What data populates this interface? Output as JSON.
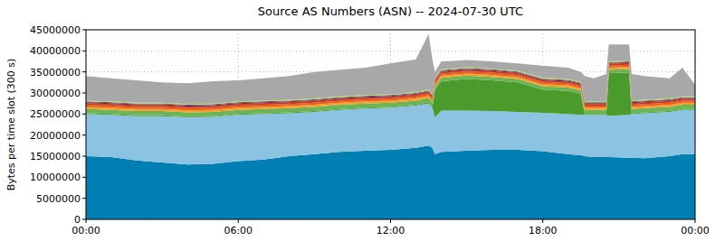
{
  "chart_data": {
    "type": "area",
    "stacked": true,
    "grid": true,
    "title": "Source AS Numbers (ASN) -- 2024-07-30 UTC",
    "y_label": "Bytes per time slot (300 s)",
    "x": [
      0,
      1,
      2,
      3,
      4,
      5,
      6,
      7,
      8,
      9,
      10,
      11,
      12,
      13,
      13.5,
      13.65,
      13.75,
      14,
      15,
      16,
      17,
      18,
      19,
      19.5,
      19.65,
      20,
      20.5,
      20.6,
      21.4,
      21.5,
      22,
      23,
      23.5,
      24
    ],
    "xlim": [
      0,
      24
    ],
    "xticks": [
      {
        "value": 0,
        "label": "00:00"
      },
      {
        "value": 6,
        "label": "06:00"
      },
      {
        "value": 12,
        "label": "12:00"
      },
      {
        "value": 18,
        "label": "18:00"
      },
      {
        "value": 24,
        "label": "00:00"
      }
    ],
    "ylim": [
      0,
      45000000
    ],
    "yticks": [
      0,
      5000000,
      10000000,
      15000000,
      20000000,
      25000000,
      30000000,
      35000000,
      40000000,
      45000000
    ],
    "series": [
      {
        "color": "#0080b2",
        "values": [
          15000000,
          14800000,
          14000000,
          13500000,
          13000000,
          13200000,
          13800000,
          14200000,
          15000000,
          15500000,
          16000000,
          16300000,
          16500000,
          17000000,
          17500000,
          17000000,
          15500000,
          16000000,
          16300000,
          16500000,
          16500000,
          16200000,
          15500000,
          15200000,
          15000000,
          14800000,
          14800000,
          14800000,
          14600000,
          14600000,
          14500000,
          15000000,
          15500000,
          15500000
        ]
      },
      {
        "color": "#8cc3e2",
        "values": [
          10000000,
          10000000,
          10500000,
          11000000,
          11200000,
          11100000,
          11000000,
          10800000,
          10200000,
          10000000,
          10000000,
          10000000,
          10000000,
          10000000,
          10000000,
          9500000,
          8700000,
          9800000,
          9500000,
          9200000,
          9000000,
          9100000,
          9500000,
          9600000,
          9800000,
          10000000,
          10000000,
          9800000,
          10200000,
          10400000,
          10700000,
          10500000,
          10500000,
          10500000
        ]
      },
      {
        "color": "#4a9a2c",
        "values": [
          200000,
          200000,
          200000,
          200000,
          200000,
          200000,
          200000,
          200000,
          200000,
          200000,
          200000,
          200000,
          200000,
          200000,
          300000,
          200000,
          6500000,
          7000000,
          7500000,
          7300000,
          7000000,
          5500000,
          5500000,
          5000000,
          200000,
          200000,
          200000,
          10100000,
          10100000,
          200000,
          200000,
          200000,
          200000,
          200000
        ]
      },
      {
        "color": "#6cb556",
        "values": [
          1000000,
          1000000,
          1000000,
          1000000,
          1000000,
          1000000,
          1000000,
          1000000,
          1000000,
          1000000,
          1000000,
          1000000,
          1000000,
          1000000,
          1000000,
          1000000,
          800000,
          800000,
          800000,
          800000,
          800000,
          800000,
          800000,
          800000,
          1000000,
          1000000,
          1000000,
          800000,
          800000,
          1000000,
          1000000,
          1000000,
          1000000,
          1000000
        ]
      },
      {
        "color": "#f5a028",
        "values": [
          500000,
          500000,
          500000,
          500000,
          500000,
          500000,
          500000,
          500000,
          500000,
          500000,
          500000,
          500000,
          500000,
          500000,
          500000,
          500000,
          500000,
          500000,
          500000,
          500000,
          500000,
          500000,
          500000,
          500000,
          500000,
          500000,
          500000,
          500000,
          500000,
          500000,
          500000,
          500000,
          500000,
          500000
        ]
      },
      {
        "color": "#e8601c",
        "values": [
          500000,
          500000,
          500000,
          500000,
          500000,
          500000,
          500000,
          500000,
          500000,
          500000,
          500000,
          500000,
          500000,
          500000,
          500000,
          500000,
          500000,
          500000,
          500000,
          500000,
          500000,
          500000,
          500000,
          500000,
          500000,
          500000,
          500000,
          500000,
          500000,
          500000,
          500000,
          500000,
          500000,
          500000
        ]
      },
      {
        "color": "#c8381a",
        "values": [
          400000,
          400000,
          400000,
          400000,
          400000,
          400000,
          400000,
          400000,
          400000,
          400000,
          400000,
          400000,
          400000,
          400000,
          400000,
          400000,
          400000,
          400000,
          400000,
          400000,
          400000,
          400000,
          400000,
          400000,
          400000,
          400000,
          400000,
          400000,
          400000,
          400000,
          400000,
          400000,
          400000,
          400000
        ]
      },
      {
        "color": "#8c1c30",
        "values": [
          200000,
          200000,
          200000,
          200000,
          200000,
          200000,
          200000,
          200000,
          200000,
          200000,
          200000,
          200000,
          200000,
          200000,
          200000,
          200000,
          200000,
          200000,
          200000,
          200000,
          200000,
          200000,
          200000,
          200000,
          200000,
          200000,
          200000,
          200000,
          200000,
          200000,
          200000,
          200000,
          200000,
          200000
        ]
      },
      {
        "color": "#5e4a94",
        "values": [
          200000,
          200000,
          200000,
          200000,
          200000,
          200000,
          200000,
          200000,
          200000,
          200000,
          200000,
          200000,
          200000,
          200000,
          200000,
          200000,
          200000,
          200000,
          200000,
          200000,
          200000,
          200000,
          200000,
          200000,
          200000,
          200000,
          200000,
          200000,
          200000,
          200000,
          200000,
          200000,
          200000,
          200000
        ]
      },
      {
        "color": "#a6e03c",
        "values": [
          200000,
          200000,
          200000,
          200000,
          200000,
          200000,
          200000,
          200000,
          200000,
          200000,
          200000,
          200000,
          200000,
          200000,
          200000,
          200000,
          200000,
          200000,
          200000,
          200000,
          200000,
          200000,
          200000,
          200000,
          200000,
          200000,
          200000,
          200000,
          200000,
          200000,
          200000,
          200000,
          200000,
          200000
        ]
      },
      {
        "color": "#a8a8a8",
        "values": [
          5800000,
          5500000,
          5300000,
          4800000,
          4900000,
          5300000,
          5000000,
          5300000,
          5600000,
          6300000,
          6300000,
          6500000,
          7300000,
          7800000,
          13200000,
          8300000,
          1500000,
          1900000,
          1700000,
          1700000,
          1700000,
          2900000,
          2700000,
          2400000,
          6000000,
          5500000,
          6500000,
          4000000,
          3800000,
          6300000,
          5600000,
          4800000,
          6800000,
          2800000
        ]
      }
    ]
  }
}
